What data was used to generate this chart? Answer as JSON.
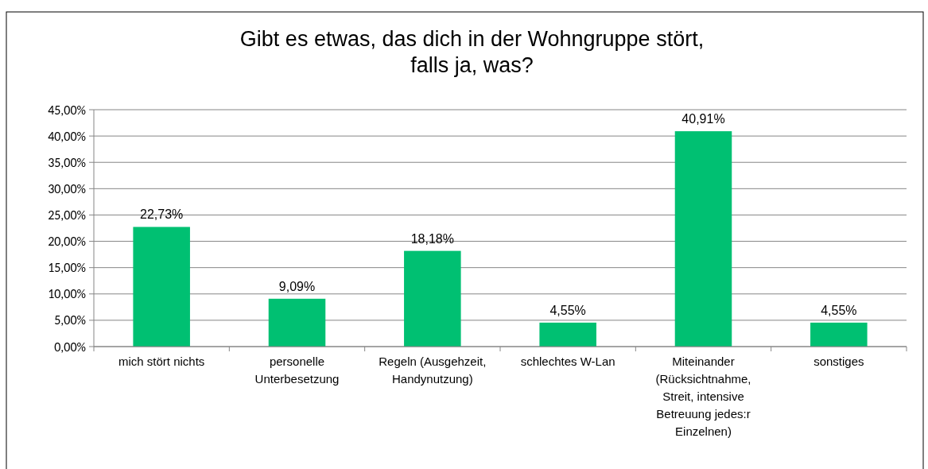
{
  "chart_data": {
    "type": "bar",
    "title": "Gibt es etwas, das dich in der Wohngruppe stört,\nfalls ja, was?",
    "categories": [
      "mich stört nichts",
      "personelle Unterbesetzung",
      "Regeln (Ausgehzeit, Handynutzung)",
      "schlechtes W-Lan",
      "Miteinander (Rücksichtnahme, Streit, intensive Betreuung jedes:r Einzelnen)",
      "sonstiges"
    ],
    "values": [
      22.73,
      9.09,
      18.18,
      4.55,
      40.91,
      4.55
    ],
    "value_labels": [
      "22,73%",
      "9,09%",
      "18,18%",
      "4,55%",
      "40,91%",
      "4,55%"
    ],
    "color": "#00c072",
    "ylim": [
      0,
      45
    ],
    "yticks": [
      {
        "value": 0,
        "label": "0,00%"
      },
      {
        "value": 5,
        "label": "5,00%"
      },
      {
        "value": 10,
        "label": "10,00%"
      },
      {
        "value": 15,
        "label": "15,00%"
      },
      {
        "value": 20,
        "label": "20,00%"
      },
      {
        "value": 25,
        "label": "25,00%"
      },
      {
        "value": 30,
        "label": "30,00%"
      },
      {
        "value": 35,
        "label": "35,00%"
      },
      {
        "value": 40,
        "label": "40,00%"
      },
      {
        "value": 45,
        "label": "45,00%"
      }
    ],
    "grid": "y"
  }
}
